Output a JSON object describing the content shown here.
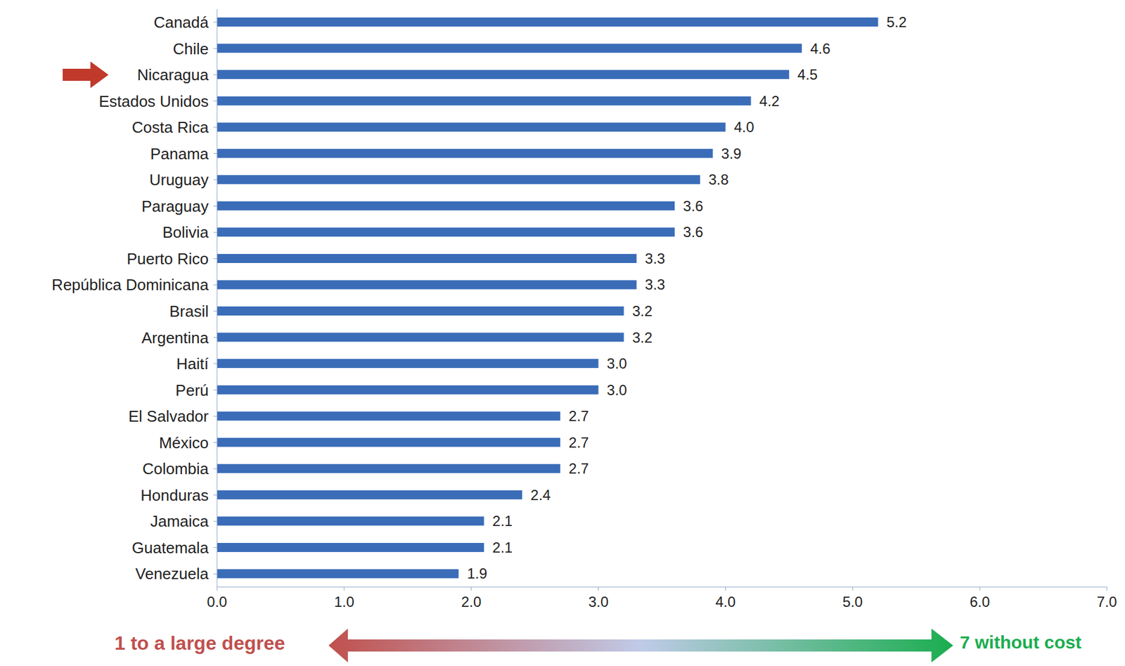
{
  "chart_data": {
    "type": "bar",
    "orientation": "horizontal",
    "categories": [
      "Canadá",
      "Chile",
      "Nicaragua",
      "Estados Unidos",
      "Costa Rica",
      "Panama",
      "Uruguay",
      "Paraguay",
      "Bolivia",
      "Puerto Rico",
      "República Dominicana",
      "Brasil",
      "Argentina",
      "Haití",
      "Perú",
      "El Salvador",
      "México",
      "Colombia",
      "Honduras",
      "Jamaica",
      "Guatemala",
      "Venezuela"
    ],
    "values": [
      5.2,
      4.6,
      4.5,
      4.2,
      4.0,
      3.9,
      3.8,
      3.6,
      3.6,
      3.3,
      3.3,
      3.2,
      3.2,
      3.0,
      3.0,
      2.7,
      2.7,
      2.7,
      2.4,
      2.1,
      2.1,
      1.9
    ],
    "value_labels": [
      "5.2",
      "4.6",
      "4.5",
      "4.2",
      "4.0",
      "3.9",
      "3.8",
      "3.6",
      "3.6",
      "3.3",
      "3.3",
      "3.2",
      "3.2",
      "3.0",
      "3.0",
      "2.7",
      "2.7",
      "2.7",
      "2.4",
      "2.1",
      "2.1",
      "1.9"
    ],
    "color": "#3a6cb8",
    "xlim": [
      0,
      7
    ],
    "xticks": [
      {
        "value": 0,
        "label": "0.0"
      },
      {
        "value": 1,
        "label": "1.0"
      },
      {
        "value": 2,
        "label": "2.0"
      },
      {
        "value": 3,
        "label": "3.0"
      },
      {
        "value": 4,
        "label": "4.0"
      },
      {
        "value": 5,
        "label": "5.0"
      },
      {
        "value": 6,
        "label": "6.0"
      },
      {
        "value": 7,
        "label": "7.0"
      }
    ],
    "grid": false,
    "data_labels": true,
    "annotations": [
      "1 to a large degree",
      "7 without cost"
    ]
  }
}
